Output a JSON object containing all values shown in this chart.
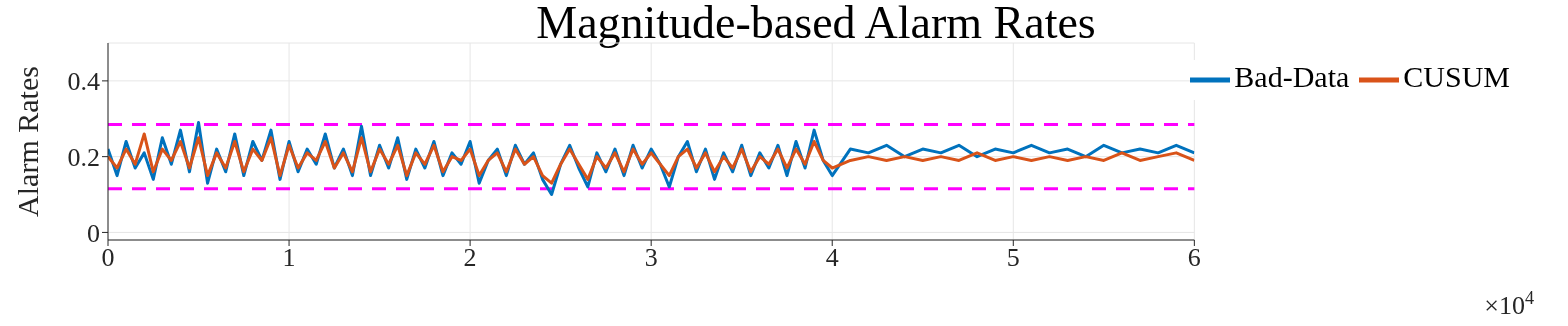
{
  "chart_data": {
    "type": "line",
    "title": "Magnitude-based Alarm Rates",
    "ylabel": "Alarm Rates",
    "annotations": [
      "×10$^{4}$"
    ],
    "x": [
      0,
      0.05,
      0.1,
      0.15,
      0.2,
      0.25,
      0.3,
      0.35,
      0.4,
      0.45,
      0.5,
      0.55,
      0.6,
      0.65,
      0.7,
      0.75,
      0.8,
      0.85,
      0.9,
      0.95,
      1,
      1.05,
      1.1,
      1.15,
      1.2,
      1.25,
      1.3,
      1.35,
      1.4,
      1.45,
      1.5,
      1.55,
      1.6,
      1.65,
      1.7,
      1.75,
      1.8,
      1.85,
      1.9,
      1.95,
      2,
      2.05,
      2.1,
      2.15,
      2.2,
      2.25,
      2.3,
      2.35,
      2.4,
      2.45,
      2.5,
      2.55,
      2.6,
      2.65,
      2.7,
      2.75,
      2.8,
      2.85,
      2.9,
      2.95,
      3,
      3.05,
      3.1,
      3.15,
      3.2,
      3.25,
      3.3,
      3.35,
      3.4,
      3.45,
      3.5,
      3.55,
      3.6,
      3.65,
      3.7,
      3.75,
      3.8,
      3.85,
      3.9,
      3.95,
      4,
      4.1,
      4.2,
      4.3,
      4.4,
      4.5,
      4.6,
      4.7,
      4.8,
      4.9,
      5,
      5.1,
      5.2,
      5.3,
      5.4,
      5.5,
      5.6,
      5.7,
      5.8,
      5.9,
      6
    ],
    "series": [
      {
        "name": "Bad-Data",
        "color": "#0072bd",
        "values": [
          0.22,
          0.15,
          0.24,
          0.17,
          0.21,
          0.14,
          0.25,
          0.18,
          0.27,
          0.16,
          0.29,
          0.13,
          0.22,
          0.16,
          0.26,
          0.15,
          0.24,
          0.19,
          0.27,
          0.14,
          0.24,
          0.16,
          0.22,
          0.18,
          0.26,
          0.17,
          0.22,
          0.15,
          0.28,
          0.15,
          0.23,
          0.17,
          0.25,
          0.14,
          0.22,
          0.17,
          0.24,
          0.15,
          0.21,
          0.18,
          0.24,
          0.13,
          0.19,
          0.22,
          0.15,
          0.23,
          0.18,
          0.21,
          0.14,
          0.1,
          0.18,
          0.23,
          0.17,
          0.12,
          0.21,
          0.16,
          0.22,
          0.15,
          0.23,
          0.17,
          0.22,
          0.18,
          0.12,
          0.2,
          0.24,
          0.16,
          0.22,
          0.14,
          0.21,
          0.16,
          0.23,
          0.15,
          0.21,
          0.17,
          0.23,
          0.15,
          0.24,
          0.17,
          0.27,
          0.19,
          0.15,
          0.22,
          0.21,
          0.23,
          0.2,
          0.22,
          0.21,
          0.23,
          0.2,
          0.22,
          0.21,
          0.23,
          0.21,
          0.22,
          0.2,
          0.23,
          0.21,
          0.22,
          0.21,
          0.23,
          0.21
        ]
      },
      {
        "name": "CUSUM",
        "color": "#d95319",
        "values": [
          0.2,
          0.17,
          0.22,
          0.18,
          0.26,
          0.16,
          0.22,
          0.19,
          0.24,
          0.17,
          0.25,
          0.15,
          0.21,
          0.17,
          0.24,
          0.16,
          0.22,
          0.19,
          0.25,
          0.15,
          0.23,
          0.17,
          0.21,
          0.19,
          0.24,
          0.17,
          0.21,
          0.16,
          0.25,
          0.16,
          0.22,
          0.18,
          0.23,
          0.15,
          0.21,
          0.18,
          0.23,
          0.16,
          0.2,
          0.19,
          0.22,
          0.15,
          0.19,
          0.21,
          0.16,
          0.22,
          0.18,
          0.2,
          0.15,
          0.13,
          0.18,
          0.22,
          0.18,
          0.14,
          0.2,
          0.17,
          0.21,
          0.16,
          0.22,
          0.18,
          0.21,
          0.18,
          0.15,
          0.2,
          0.22,
          0.17,
          0.21,
          0.16,
          0.2,
          0.17,
          0.22,
          0.16,
          0.2,
          0.18,
          0.22,
          0.17,
          0.22,
          0.18,
          0.24,
          0.19,
          0.17,
          0.19,
          0.2,
          0.19,
          0.2,
          0.19,
          0.2,
          0.19,
          0.21,
          0.19,
          0.2,
          0.19,
          0.2,
          0.19,
          0.2,
          0.19,
          0.21,
          0.19,
          0.2,
          0.21,
          0.19
        ]
      }
    ],
    "xlim": [
      0,
      6
    ],
    "xticks": [
      0,
      1,
      2,
      3,
      4,
      5,
      6
    ],
    "ylim": [
      -0.02,
      0.5
    ],
    "yticks": [
      0,
      0.2,
      0.4
    ],
    "ref_lines": [
      {
        "axis": "y",
        "value": 0.285,
        "color": "#ff00ff",
        "line_style": "dashed"
      },
      {
        "axis": "y",
        "value": 0.115,
        "color": "#ff00ff",
        "line_style": "dashed"
      }
    ],
    "grid": true,
    "legend": "top right",
    "line_style": "solid",
    "marker": "none"
  }
}
